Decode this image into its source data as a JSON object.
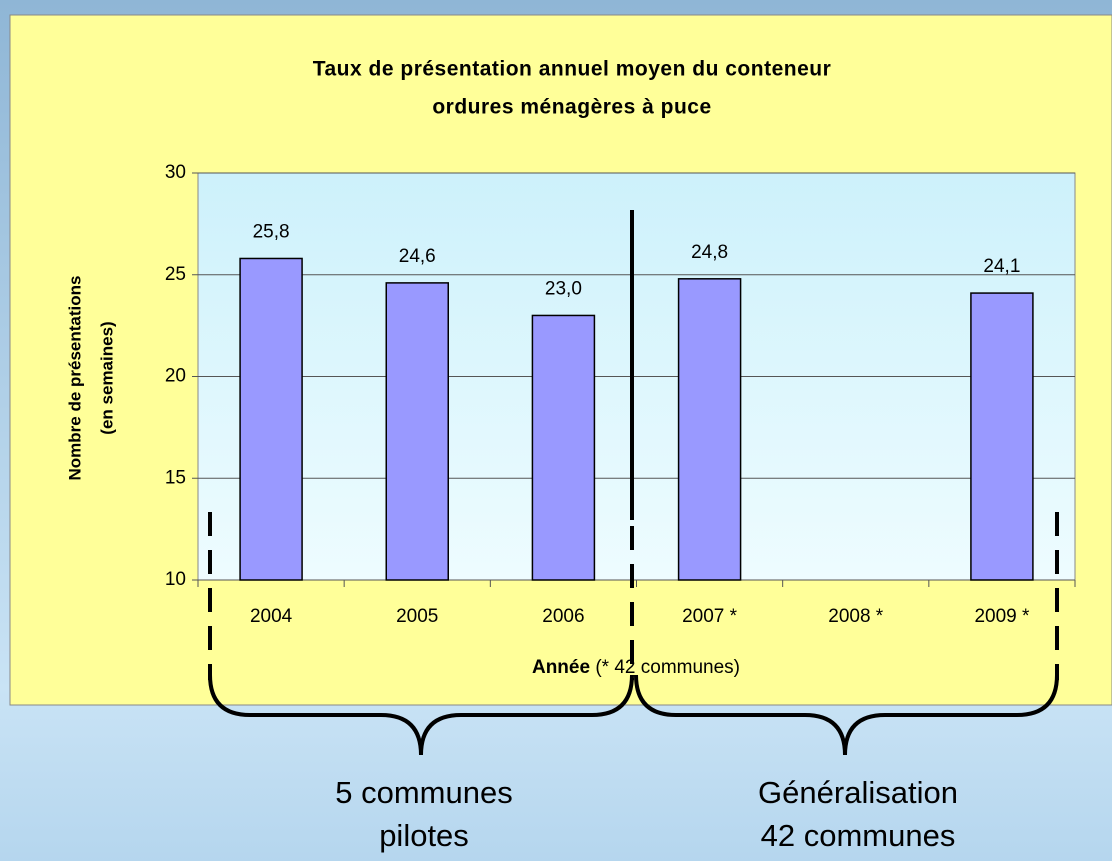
{
  "chart_data": {
    "type": "bar",
    "title": [
      "Taux de présentation annuel moyen du conteneur",
      "ordures ménagères à puce"
    ],
    "ylabel": [
      "Nombre de présentations",
      "(en semaines)"
    ],
    "xlabel": "Année",
    "xlabel_note": "(* 42 communes)",
    "categories": [
      "2004",
      "2005",
      "2006",
      "2007 *",
      "2008 *",
      "2009 *"
    ],
    "values": [
      25.8,
      24.6,
      23.0,
      24.8,
      null,
      24.1
    ],
    "value_labels": [
      "25,8",
      "24,6",
      "23,0",
      "24,8",
      null,
      "24,1"
    ],
    "color": "#9999ff",
    "ylim": [
      10,
      30
    ],
    "yticks": [
      10,
      15,
      20,
      25,
      30
    ],
    "grid": true,
    "annotations": [
      [
        "5 communes",
        "pilotes"
      ],
      [
        "Généralisation",
        "42 communes"
      ]
    ]
  }
}
